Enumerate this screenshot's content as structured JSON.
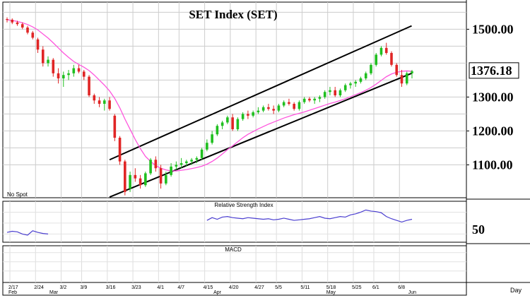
{
  "chart_data": [
    {
      "type": "candlestick",
      "title": "SET  Index  (SET)",
      "note": "No Spot",
      "last_value_label": "1376.18",
      "y_tick_labels": [
        "1500.00",
        "1300.00",
        "1200.00",
        "1100.00"
      ],
      "y_ticks": [
        1500,
        1300,
        1200,
        1100
      ],
      "ylim": [
        1003,
        1580
      ],
      "grid": true,
      "x_tick_labels": [
        "2/17",
        "2/24",
        "3/2",
        "3/9",
        "3/16",
        "3/23",
        "4/1",
        "4/7",
        "4/15",
        "4/20",
        "4/27",
        "5/5",
        "5/11",
        "5/18",
        "5/25",
        "6/1",
        "6/8"
      ],
      "month_labels": [
        "Feb",
        "Mar",
        "Apr",
        "May",
        "Jun"
      ],
      "x_axis_right_label": "Day",
      "candles": [
        [
          1530,
          1535,
          1520,
          1528
        ],
        [
          1528,
          1532,
          1515,
          1520
        ],
        [
          1520,
          1525,
          1510,
          1515
        ],
        [
          1515,
          1520,
          1500,
          1505
        ],
        [
          1505,
          1510,
          1485,
          1490
        ],
        [
          1490,
          1495,
          1470,
          1475
        ],
        [
          1470,
          1475,
          1430,
          1440
        ],
        [
          1440,
          1450,
          1390,
          1400
        ],
        [
          1400,
          1420,
          1390,
          1410
        ],
        [
          1410,
          1415,
          1360,
          1370
        ],
        [
          1370,
          1385,
          1340,
          1355
        ],
        [
          1355,
          1375,
          1330,
          1365
        ],
        [
          1365,
          1380,
          1350,
          1370
        ],
        [
          1370,
          1395,
          1360,
          1385
        ],
        [
          1385,
          1395,
          1370,
          1375
        ],
        [
          1375,
          1380,
          1350,
          1360
        ],
        [
          1360,
          1365,
          1300,
          1305
        ],
        [
          1305,
          1310,
          1280,
          1290
        ],
        [
          1290,
          1300,
          1270,
          1280
        ],
        [
          1280,
          1295,
          1260,
          1290
        ],
        [
          1290,
          1300,
          1260,
          1265
        ],
        [
          1245,
          1250,
          1170,
          1180
        ],
        [
          1180,
          1185,
          1100,
          1110
        ],
        [
          1110,
          1115,
          1010,
          1020
        ],
        [
          1030,
          1080,
          1020,
          1070
        ],
        [
          1070,
          1090,
          1050,
          1060
        ],
        [
          1060,
          1070,
          1030,
          1040
        ],
        [
          1040,
          1080,
          1035,
          1075
        ],
        [
          1075,
          1120,
          1070,
          1115
        ],
        [
          1115,
          1125,
          1080,
          1090
        ],
        [
          1090,
          1100,
          1030,
          1045
        ],
        [
          1045,
          1080,
          1040,
          1070
        ],
        [
          1070,
          1105,
          1065,
          1095
        ],
        [
          1095,
          1110,
          1085,
          1100
        ],
        [
          1100,
          1120,
          1090,
          1105
        ],
        [
          1105,
          1115,
          1095,
          1110
        ],
        [
          1110,
          1120,
          1100,
          1115
        ],
        [
          1115,
          1125,
          1105,
          1120
        ],
        [
          1120,
          1150,
          1115,
          1145
        ],
        [
          1145,
          1175,
          1140,
          1165
        ],
        [
          1165,
          1200,
          1160,
          1190
        ],
        [
          1190,
          1220,
          1185,
          1215
        ],
        [
          1215,
          1230,
          1205,
          1225
        ],
        [
          1225,
          1245,
          1220,
          1240
        ],
        [
          1240,
          1250,
          1200,
          1205
        ],
        [
          1205,
          1240,
          1200,
          1235
        ],
        [
          1235,
          1255,
          1230,
          1250
        ],
        [
          1250,
          1260,
          1235,
          1245
        ],
        [
          1245,
          1260,
          1240,
          1255
        ],
        [
          1255,
          1270,
          1250,
          1260
        ],
        [
          1260,
          1275,
          1255,
          1270
        ],
        [
          1270,
          1280,
          1260,
          1265
        ],
        [
          1265,
          1275,
          1250,
          1260
        ],
        [
          1260,
          1280,
          1255,
          1275
        ],
        [
          1275,
          1290,
          1270,
          1285
        ],
        [
          1285,
          1295,
          1275,
          1280
        ],
        [
          1280,
          1285,
          1260,
          1265
        ],
        [
          1265,
          1290,
          1260,
          1285
        ],
        [
          1285,
          1300,
          1280,
          1295
        ],
        [
          1295,
          1300,
          1285,
          1290
        ],
        [
          1290,
          1300,
          1280,
          1295
        ],
        [
          1295,
          1305,
          1285,
          1300
        ],
        [
          1300,
          1320,
          1295,
          1315
        ],
        [
          1315,
          1330,
          1305,
          1320
        ],
        [
          1320,
          1330,
          1300,
          1305
        ],
        [
          1305,
          1325,
          1300,
          1320
        ],
        [
          1320,
          1340,
          1315,
          1335
        ],
        [
          1335,
          1345,
          1325,
          1340
        ],
        [
          1340,
          1350,
          1330,
          1345
        ],
        [
          1345,
          1360,
          1340,
          1355
        ],
        [
          1355,
          1375,
          1350,
          1370
        ],
        [
          1370,
          1400,
          1365,
          1395
        ],
        [
          1395,
          1430,
          1390,
          1425
        ],
        [
          1425,
          1450,
          1420,
          1445
        ],
        [
          1445,
          1460,
          1425,
          1430
        ],
        [
          1430,
          1435,
          1390,
          1395
        ],
        [
          1395,
          1400,
          1360,
          1365
        ],
        [
          1365,
          1380,
          1330,
          1340
        ],
        [
          1340,
          1375,
          1335,
          1370
        ],
        [
          1370,
          1380,
          1355,
          1376
        ]
      ],
      "sma": [
        1528,
        1526,
        1523,
        1519,
        1514,
        1507,
        1498,
        1486,
        1474,
        1460,
        1445,
        1430,
        1417,
        1405,
        1396,
        1388,
        1378,
        1365,
        1350,
        1335,
        1318,
        1296,
        1268,
        1235,
        1205,
        1175,
        1148,
        1125,
        1110,
        1098,
        1090,
        1085,
        1082,
        1082,
        1084,
        1086,
        1089,
        1092,
        1096,
        1102,
        1110,
        1120,
        1132,
        1145,
        1156,
        1168,
        1180,
        1190,
        1198,
        1206,
        1213,
        1220,
        1226,
        1232,
        1238,
        1243,
        1248,
        1252,
        1256,
        1261,
        1266,
        1271,
        1276,
        1281,
        1285,
        1290,
        1295,
        1301,
        1307,
        1313,
        1320,
        1328,
        1338,
        1349,
        1360,
        1368,
        1373,
        1376,
        1377,
        1376
      ],
      "channel": [
        {
          "x": [
            20,
            81
          ],
          "y": [
            1115,
            1510
          ]
        },
        {
          "x": [
            20,
            81
          ],
          "y": [
            1005,
            1370
          ]
        }
      ]
    },
    {
      "type": "line",
      "title": "Relative  Strength  Index",
      "y_tick_labels": [
        "50"
      ],
      "ylim": [
        15,
        90
      ],
      "series": [
        {
          "values": [
            33,
            35,
            34,
            30,
            28,
            36,
            33,
            31,
            30,
            null,
            null,
            null,
            null,
            null,
            null,
            null,
            null,
            null,
            null,
            null,
            null,
            null,
            null,
            null,
            null,
            null,
            null,
            null,
            null,
            null,
            null,
            null,
            null,
            null,
            null,
            null,
            null,
            null,
            null,
            null,
            null,
            null,
            null,
            null,
            null,
            null,
            null,
            null,
            null,
            null,
            null,
            null,
            null,
            null,
            null,
            null,
            null,
            null,
            null,
            null,
            null,
            null,
            null,
            null,
            null,
            null,
            null,
            null,
            null,
            null,
            null,
            null,
            null,
            null,
            null,
            null,
            null,
            null,
            null,
            null
          ]
        },
        {
          "values": [
            null,
            null,
            null,
            null,
            null,
            null,
            null,
            null,
            null,
            null,
            null,
            null,
            null,
            null,
            null,
            null,
            null,
            null,
            null,
            null,
            null,
            null,
            null,
            null,
            null,
            null,
            null,
            null,
            null,
            null,
            null,
            null,
            null,
            null,
            null,
            null,
            null,
            null,
            null,
            55,
            60,
            57,
            61,
            62,
            60,
            59,
            58,
            60,
            59,
            58,
            57,
            58,
            56,
            57,
            59,
            57,
            55,
            56,
            57,
            58,
            60,
            62,
            59,
            58,
            60,
            62,
            61,
            65,
            67,
            70,
            74,
            72,
            71,
            69,
            62,
            58,
            55,
            52,
            55,
            57
          ]
        }
      ]
    },
    {
      "type": "line",
      "title": "MACD",
      "ylim": [
        -45,
        35
      ],
      "series": [
        {
          "color": "#2a3fd6",
          "values": [
            null,
            null,
            null,
            null,
            null,
            null,
            null,
            null,
            null,
            null,
            null,
            null,
            null,
            null,
            null,
            null,
            null,
            null,
            null,
            null,
            null,
            null,
            null,
            null,
            null,
            null,
            null,
            null,
            null,
            null,
            null,
            null,
            null,
            null,
            null,
            null,
            null,
            null,
            null,
            null,
            null,
            null,
            null,
            null,
            null,
            null,
            null,
            null,
            null,
            null,
            null,
            null,
            null,
            null,
            null,
            null,
            null,
            null,
            null,
            null,
            null,
            null,
            null,
            null,
            null,
            null,
            null,
            null,
            null,
            null,
            null,
            null,
            null,
            null,
            null,
            null,
            null,
            null,
            null,
            null
          ]
        },
        {
          "color": "#e040c8",
          "values": [
            null,
            null,
            null,
            null,
            null,
            null,
            null,
            null,
            null,
            null,
            null,
            null,
            null,
            null,
            null,
            null,
            null,
            null,
            null,
            null,
            null,
            null,
            null,
            null,
            null,
            null,
            null,
            null,
            null,
            null,
            null,
            null,
            null,
            null,
            null,
            null,
            null,
            null,
            null,
            null,
            null,
            null,
            null,
            null,
            null,
            null,
            null,
            null,
            null,
            null,
            null,
            null,
            null,
            null,
            null,
            null,
            null,
            null,
            null,
            null,
            null,
            null,
            null,
            null,
            null,
            null,
            null,
            null,
            null,
            null,
            null,
            null,
            null,
            null,
            null,
            null,
            null,
            null,
            null,
            null
          ]
        }
      ]
    }
  ],
  "colors": {
    "up": "#1fbf1f",
    "down": "#e02525",
    "sma": "#ff55dd",
    "channel": "#000000",
    "rsi": "#4b3fd0",
    "macd": "#2a3fd6",
    "signal": "#e040c8"
  }
}
